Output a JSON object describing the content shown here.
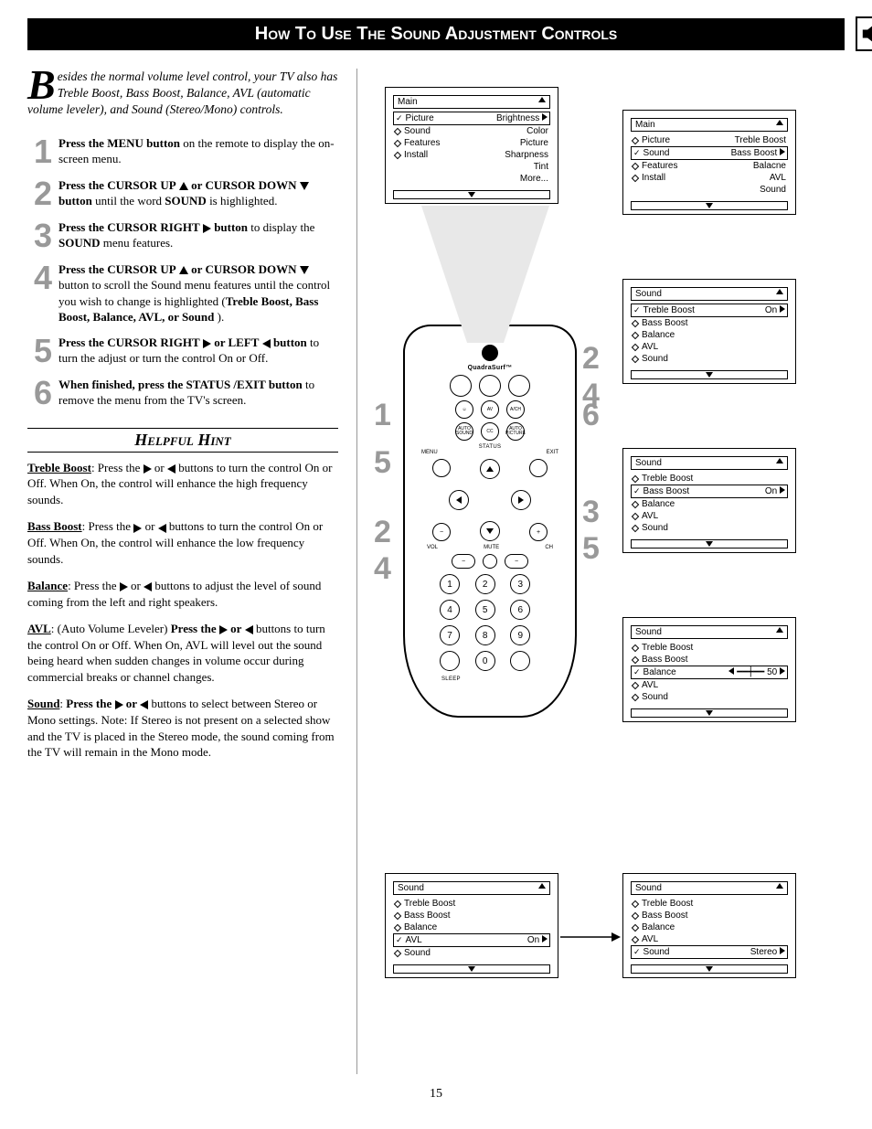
{
  "title": "How To Use The Sound Adjustment Controls",
  "page_number": "15",
  "intro": {
    "dropcap": "B",
    "text": "esides the normal volume level control, your TV also has Treble Boost, Bass Boost, Balance, AVL (automatic volume leveler), and Sound (Stereo/Mono) controls."
  },
  "steps": [
    {
      "n": "1",
      "html": "<b>Press the MENU button</b> on the remote to display the on-screen menu."
    },
    {
      "n": "2",
      "html": "<b>Press the CURSOR UP</b> <span class='tri tri-up'></span> <b>or CURSOR DOWN</b> <span class='tri tri-down'></span> <b>button</b> until the word <b>SOUND</b> is highlighted."
    },
    {
      "n": "3",
      "html": "<b>Press the CURSOR RIGHT</b> <span class='tri tri-right'></span> <b>button</b> to display the <b>SOUND</b> menu features."
    },
    {
      "n": "4",
      "html": "<b>Press the CURSOR UP</b> <span class='tri tri-up'></span> <b>or CURSOR DOWN</b> <span class='tri tri-down'></span> button to scroll the Sound menu features until the control you wish to change is highlighted (<b>Treble Boost, Bass Boost, Balance, AVL, or Sound</b> )."
    },
    {
      "n": "5",
      "html": "<b>Press the CURSOR RIGHT</b> <span class='tri tri-right'></span> <b>or LEFT</b> <span class='tri tri-left'></span> <b>button</b> to turn the adjust or turn the control On or Off."
    },
    {
      "n": "6",
      "html": "<b>When finished, press the STATUS /EXIT button</b> to remove the menu from the TV's screen."
    }
  ],
  "hint_heading": "Helpful Hint",
  "hints": [
    {
      "label": "Treble Boost",
      "text": ": Press the <span class='tri tri-right'></span> or <span class='tri tri-left'></span> buttons to turn the control On or Off. When On, the control will enhance the high frequency sounds."
    },
    {
      "label": "Bass Boost",
      "text": ": Press the <span class='tri tri-right'></span> or <span class='tri tri-left'></span> buttons to turn the control On or Off. When On, the control will enhance the low frequency sounds."
    },
    {
      "label": "Balance",
      "text": ": Press the <span class='tri tri-right'></span> or <span class='tri tri-left'></span> buttons to adjust the level of sound coming from the left and right speakers."
    },
    {
      "label": "AVL",
      "text": ": (Auto Volume Leveler) <b>Press the</b> <span class='tri tri-right'></span> <b>or</b> <span class='tri tri-left'></span> buttons to turn the control On or Off. When On, AVL will level out the sound being heard when sudden changes in volume occur during commercial breaks or channel changes."
    },
    {
      "label": "Sound",
      "text": ": <b>Press the</b> <span class='tri tri-right'></span> <b>or</b> <span class='tri tri-left'></span> buttons to select between Stereo or Mono settings. Note: If Stereo is not present on a selected show and the TV is placed in the Stereo mode, the sound coming from the TV will remain in the Mono mode."
    }
  ],
  "menus": {
    "main_picture": {
      "title": "Main",
      "rows": [
        {
          "mark": "chk",
          "sel": true,
          "l": "Picture",
          "r": "Brightness",
          "arrow": true
        },
        {
          "mark": "diam",
          "l": "Sound",
          "r": "Color"
        },
        {
          "mark": "diam",
          "l": "Features",
          "r": "Picture"
        },
        {
          "mark": "diam",
          "l": "Install",
          "r": "Sharpness"
        },
        {
          "l": "",
          "r": "Tint"
        },
        {
          "l": "",
          "r": "More..."
        }
      ]
    },
    "main_sound": {
      "title": "Main",
      "rows": [
        {
          "mark": "diam",
          "l": "Picture",
          "r": "Treble Boost"
        },
        {
          "mark": "chk",
          "sel": true,
          "l": "Sound",
          "r": "Bass Boost",
          "arrow": true
        },
        {
          "mark": "diam",
          "l": "Features",
          "r": "Balacne"
        },
        {
          "mark": "diam",
          "l": "Install",
          "r": "AVL"
        },
        {
          "l": "",
          "r": "Sound"
        }
      ]
    },
    "sound_treble": {
      "title": "Sound",
      "rows": [
        {
          "mark": "chk",
          "sel": true,
          "l": "Treble Boost",
          "r": "On",
          "arrow": true
        },
        {
          "mark": "diam",
          "l": "Bass Boost"
        },
        {
          "mark": "diam",
          "l": "Balance"
        },
        {
          "mark": "diam",
          "l": "AVL"
        },
        {
          "mark": "diam",
          "l": "Sound"
        }
      ]
    },
    "sound_bass": {
      "title": "Sound",
      "rows": [
        {
          "mark": "diam",
          "l": "Treble Boost"
        },
        {
          "mark": "chk",
          "sel": true,
          "l": "Bass Boost",
          "r": "On",
          "arrow": true
        },
        {
          "mark": "diam",
          "l": "Balance"
        },
        {
          "mark": "diam",
          "l": "AVL"
        },
        {
          "mark": "diam",
          "l": "Sound"
        }
      ]
    },
    "sound_balance": {
      "title": "Sound",
      "rows": [
        {
          "mark": "diam",
          "l": "Treble Boost"
        },
        {
          "mark": "diam",
          "l": "Bass Boost"
        },
        {
          "mark": "chk",
          "sel": true,
          "l": "Balance",
          "r": "50",
          "slider": true
        },
        {
          "mark": "diam",
          "l": "AVL"
        },
        {
          "mark": "diam",
          "l": "Sound"
        }
      ]
    },
    "sound_avl": {
      "title": "Sound",
      "rows": [
        {
          "mark": "diam",
          "l": "Treble Boost"
        },
        {
          "mark": "diam",
          "l": "Bass Boost"
        },
        {
          "mark": "diam",
          "l": "Balance"
        },
        {
          "mark": "chk",
          "sel": true,
          "l": "AVL",
          "r": "On",
          "arrow": true
        },
        {
          "mark": "diam",
          "l": "Sound"
        }
      ]
    },
    "sound_stereo": {
      "title": "Sound",
      "rows": [
        {
          "mark": "diam",
          "l": "Treble Boost"
        },
        {
          "mark": "diam",
          "l": "Bass Boost"
        },
        {
          "mark": "diam",
          "l": "Balance"
        },
        {
          "mark": "diam",
          "l": "AVL"
        },
        {
          "mark": "chk",
          "sel": true,
          "l": "Sound",
          "r": "Stereo",
          "arrow": true
        }
      ]
    }
  },
  "remote": {
    "brand": "QuadraSurf™",
    "power": "POWER",
    "top_small": [
      "☺",
      "AV",
      "A/CH"
    ],
    "mid_small": [
      "AUTO\nSOUND",
      "CC",
      "AUTO\nPICTURE"
    ],
    "status": "STATUS",
    "menu": "MENU",
    "exit": "EXIT",
    "vol": "VOL",
    "ch": "CH",
    "mute": "MUTE",
    "numbers": [
      "1",
      "2",
      "3",
      "4",
      "5",
      "6",
      "7",
      "8",
      "9",
      "",
      "0",
      ""
    ],
    "sleep": "SLEEP"
  },
  "callouts": {
    "left": [
      "1",
      "5",
      "2",
      "4"
    ],
    "right": [
      "2",
      "4",
      "6",
      "3",
      "5"
    ]
  },
  "colors": {
    "accent_gray": "#999999"
  }
}
